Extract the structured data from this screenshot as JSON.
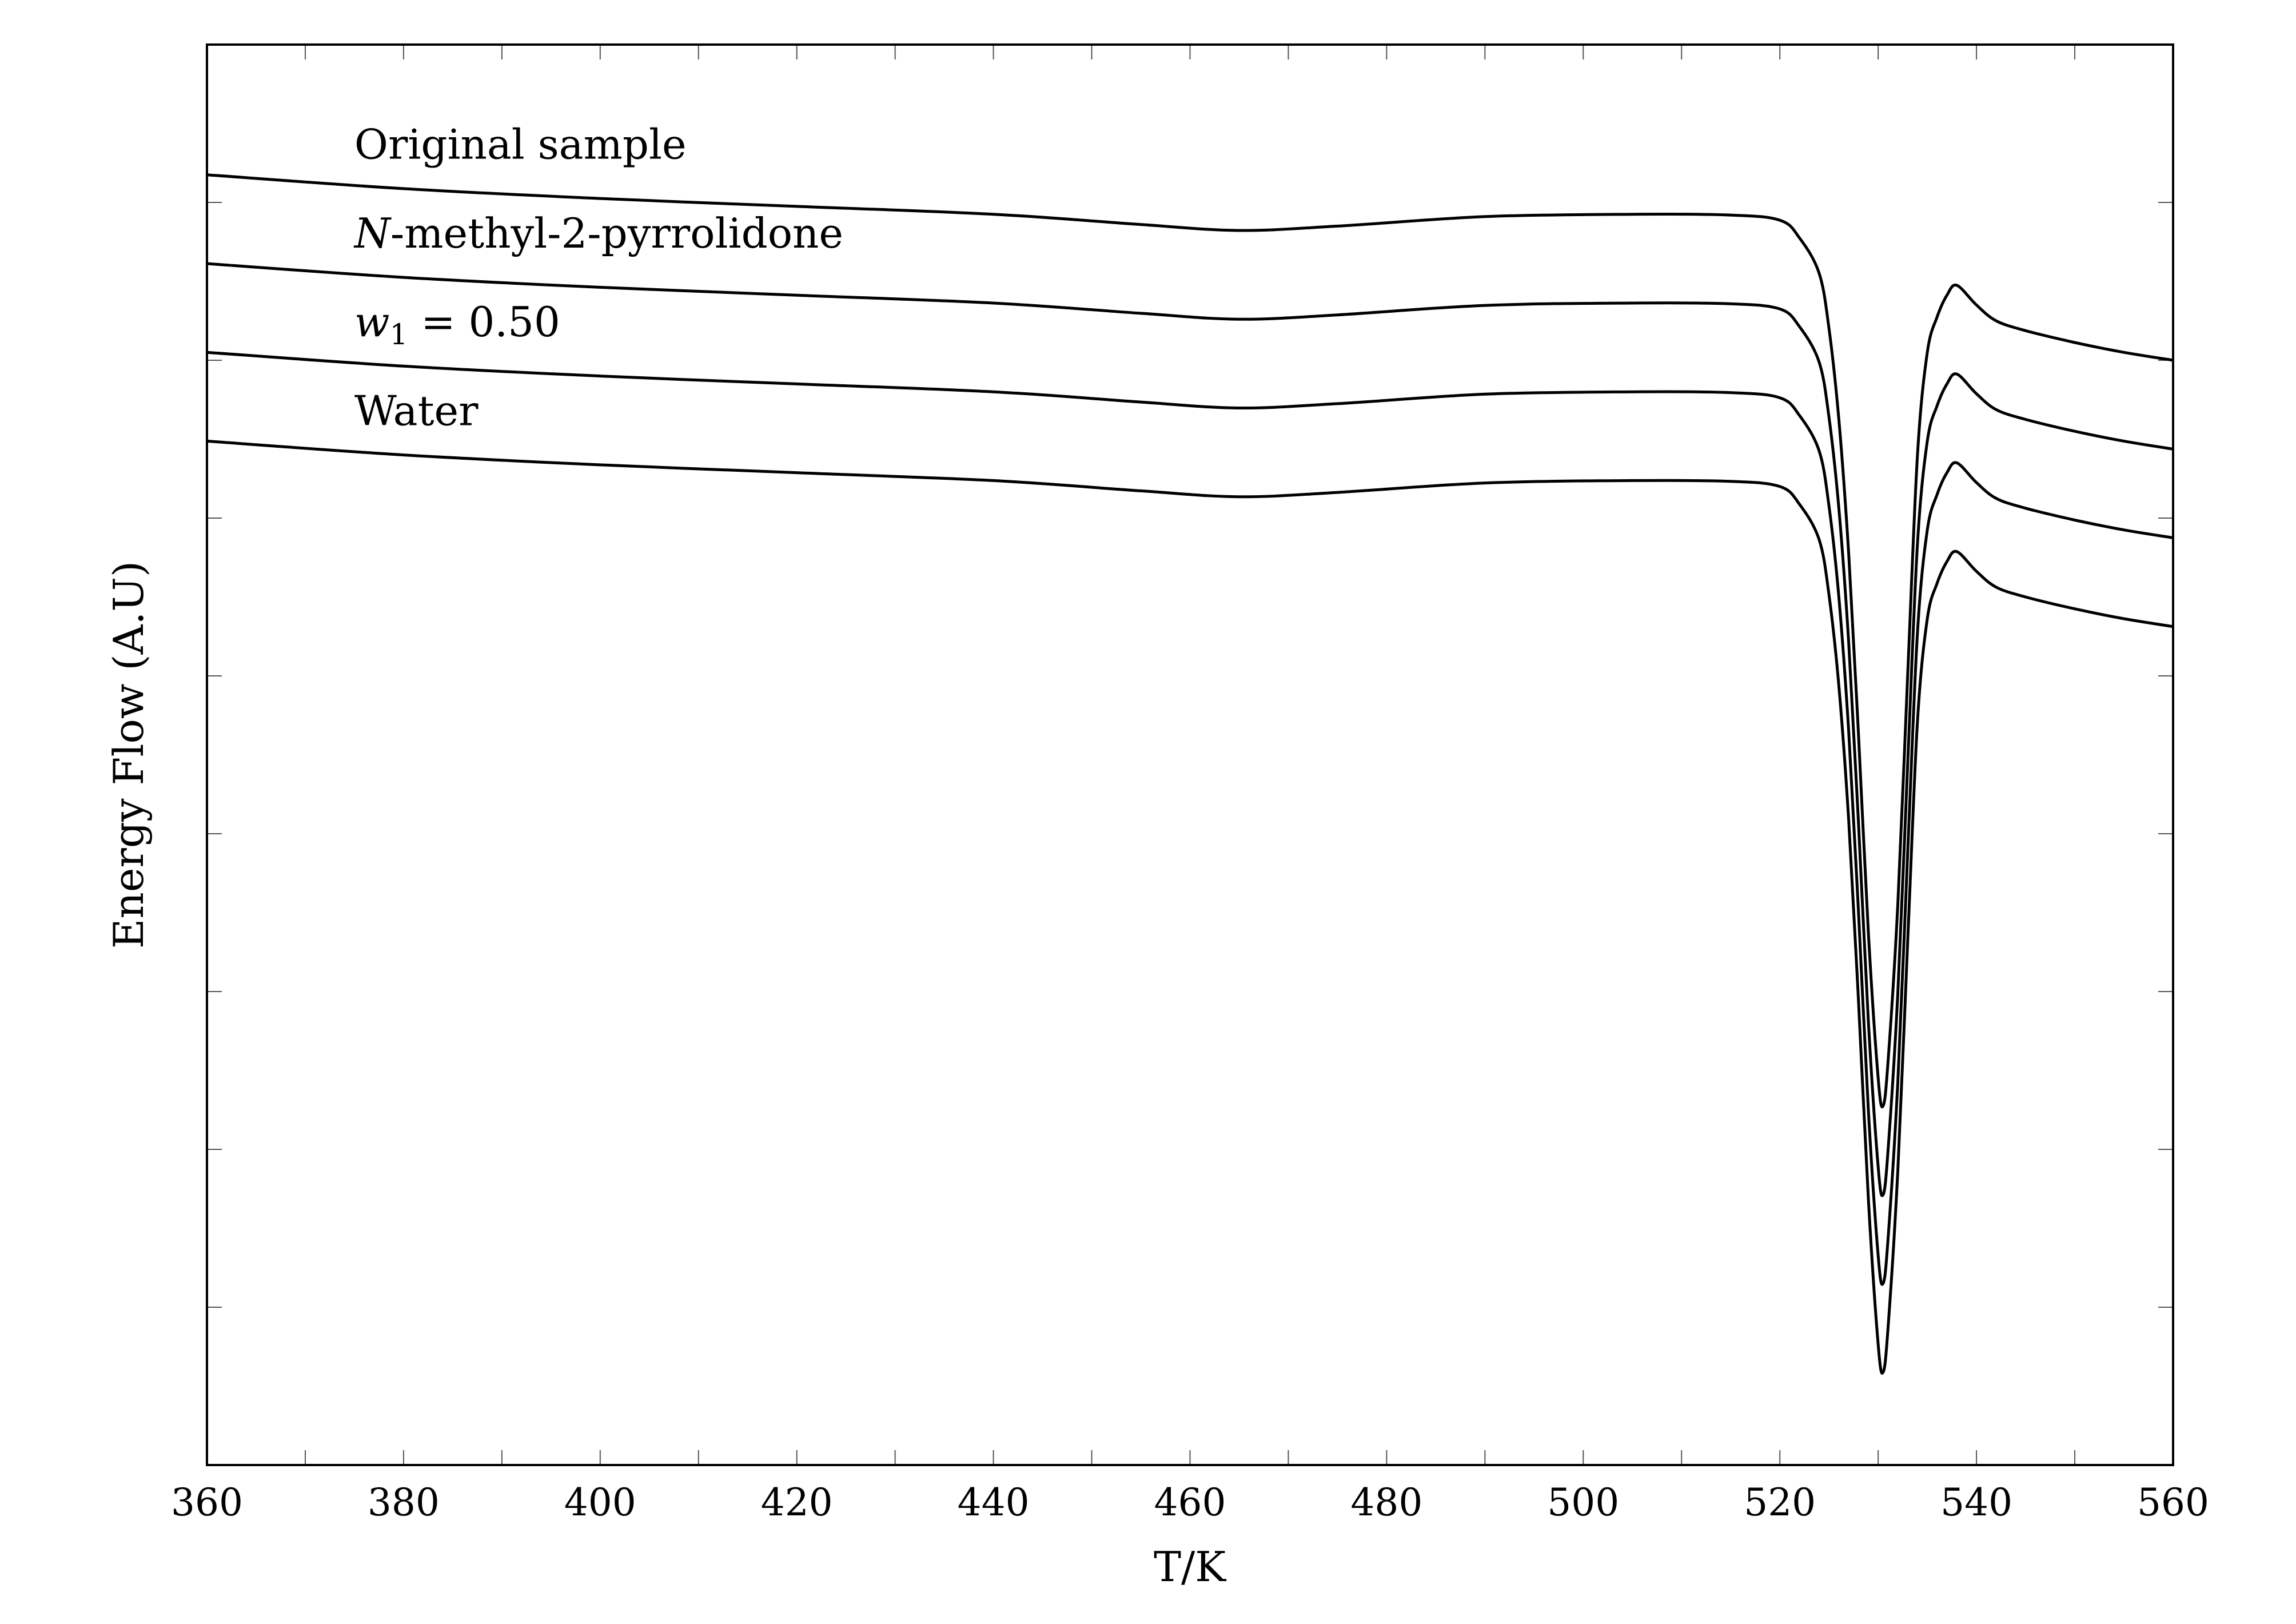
{
  "chart_data": {
    "type": "line",
    "title": "",
    "xlabel": "T/K",
    "ylabel": "Energy Flow (A.U)",
    "xlim": [
      360,
      560
    ],
    "ylim": [
      -3.6,
      0
    ],
    "x_ticks": [
      360,
      380,
      400,
      420,
      440,
      460,
      480,
      500,
      520,
      540,
      560
    ],
    "x_tick_labels": [
      "360",
      "380",
      "400",
      "420",
      "440",
      "460",
      "480",
      "500",
      "520",
      "540",
      "560"
    ],
    "y_tick_labels_shown": false,
    "grid": false,
    "legend": "none; series labeled inline above curves",
    "series": [
      {
        "name": "Original sample",
        "label_parts": [
          "",
          "Original sample"
        ],
        "x": [
          360,
          380,
          400,
          420,
          440,
          455,
          465,
          475,
          490,
          505,
          515,
          520,
          522,
          524,
          525,
          526,
          527,
          528,
          529,
          530,
          530.5,
          531,
          532,
          533,
          534,
          535,
          536,
          537,
          538,
          540,
          542,
          545,
          550,
          555,
          560
        ],
        "y": [
          -0.33,
          -0.365,
          -0.39,
          -0.41,
          -0.43,
          -0.456,
          -0.471,
          -0.46,
          -0.436,
          -0.43,
          -0.432,
          -0.445,
          -0.49,
          -0.58,
          -0.72,
          -0.95,
          -1.29,
          -1.75,
          -2.25,
          -2.62,
          -2.69,
          -2.58,
          -2.18,
          -1.6,
          -1.04,
          -0.78,
          -0.69,
          -0.635,
          -0.61,
          -0.66,
          -0.7,
          -0.725,
          -0.755,
          -0.78,
          -0.8
        ]
      },
      {
        "name": "N-methyl-2-pyrrolidone",
        "label_parts": [
          "N",
          "-methyl-2-pyrrolidone"
        ],
        "x": [
          360,
          380,
          400,
          420,
          440,
          455,
          465,
          475,
          490,
          505,
          515,
          520,
          522,
          524,
          525,
          526,
          527,
          528,
          529,
          530,
          530.5,
          531,
          532,
          533,
          534,
          535,
          536,
          537,
          538,
          540,
          542,
          545,
          550,
          555,
          560
        ],
        "y": [
          -0.555,
          -0.59,
          -0.615,
          -0.635,
          -0.655,
          -0.681,
          -0.696,
          -0.685,
          -0.661,
          -0.655,
          -0.657,
          -0.67,
          -0.715,
          -0.805,
          -0.945,
          -1.175,
          -1.515,
          -1.975,
          -2.475,
          -2.845,
          -2.915,
          -2.805,
          -2.405,
          -1.825,
          -1.265,
          -1.005,
          -0.915,
          -0.86,
          -0.835,
          -0.885,
          -0.925,
          -0.95,
          -0.98,
          -1.005,
          -1.025
        ]
      },
      {
        "name": "w1 = 0.50",
        "label_parts": [
          "w",
          "1",
          " = 0.50"
        ],
        "x": [
          360,
          380,
          400,
          420,
          440,
          455,
          465,
          475,
          490,
          505,
          515,
          520,
          522,
          524,
          525,
          526,
          527,
          528,
          529,
          530,
          530.5,
          531,
          532,
          533,
          534,
          535,
          536,
          537,
          538,
          540,
          542,
          545,
          550,
          555,
          560
        ],
        "y": [
          -0.78,
          -0.815,
          -0.84,
          -0.86,
          -0.88,
          -0.906,
          -0.921,
          -0.91,
          -0.886,
          -0.88,
          -0.882,
          -0.895,
          -0.94,
          -1.03,
          -1.17,
          -1.4,
          -1.74,
          -2.2,
          -2.7,
          -3.07,
          -3.14,
          -3.03,
          -2.63,
          -2.05,
          -1.49,
          -1.23,
          -1.14,
          -1.085,
          -1.06,
          -1.11,
          -1.15,
          -1.175,
          -1.205,
          -1.23,
          -1.25
        ]
      },
      {
        "name": "Water",
        "label_parts": [
          "",
          "Water"
        ],
        "x": [
          360,
          380,
          400,
          420,
          440,
          455,
          465,
          475,
          490,
          505,
          515,
          520,
          522,
          524,
          525,
          526,
          527,
          528,
          529,
          530,
          530.5,
          531,
          532,
          533,
          534,
          535,
          536,
          537,
          538,
          540,
          542,
          545,
          550,
          555,
          560
        ],
        "y": [
          -1.005,
          -1.04,
          -1.065,
          -1.085,
          -1.105,
          -1.131,
          -1.146,
          -1.135,
          -1.111,
          -1.105,
          -1.107,
          -1.12,
          -1.165,
          -1.255,
          -1.395,
          -1.625,
          -1.965,
          -2.425,
          -2.925,
          -3.295,
          -3.365,
          -3.255,
          -2.855,
          -2.275,
          -1.715,
          -1.455,
          -1.365,
          -1.31,
          -1.285,
          -1.335,
          -1.375,
          -1.4,
          -1.43,
          -1.455,
          -1.475
        ]
      }
    ]
  }
}
